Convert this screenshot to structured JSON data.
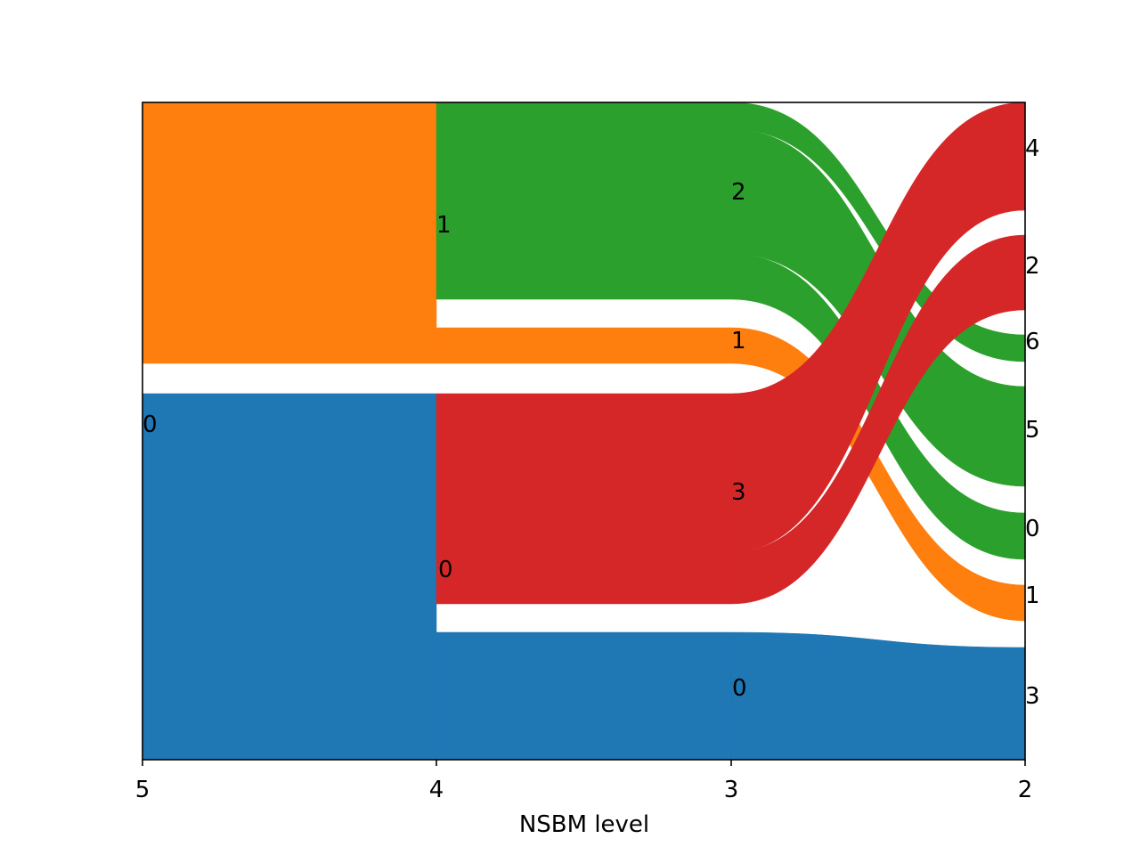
{
  "chart_data": {
    "type": "sankey",
    "xlabel": "NSBM level",
    "x_ticks": [
      "5",
      "4",
      "3",
      "2"
    ],
    "levels": [
      "5",
      "4",
      "3",
      "2"
    ],
    "colors": {
      "blue": "#1f77b4",
      "orange": "#ff7f0e",
      "green": "#2ca02c",
      "red": "#d62728"
    },
    "nodes": [
      {
        "level": "5",
        "label": "0",
        "color": "#1f77b4"
      },
      {
        "level": "4",
        "label": "1",
        "color": "#ff7f0e"
      },
      {
        "level": "4",
        "label": "0",
        "color": "#1f77b4"
      },
      {
        "level": "3",
        "label": "2",
        "color": "#2ca02c"
      },
      {
        "level": "3",
        "label": "1",
        "color": "#ff7f0e"
      },
      {
        "level": "3",
        "label": "3",
        "color": "#d62728"
      },
      {
        "level": "3",
        "label": "0",
        "color": "#1f77b4"
      },
      {
        "level": "2",
        "label": "4",
        "color": "#d62728"
      },
      {
        "level": "2",
        "label": "2",
        "color": "#d62728"
      },
      {
        "level": "2",
        "label": "6",
        "color": "#2ca02c"
      },
      {
        "level": "2",
        "label": "5",
        "color": "#2ca02c"
      },
      {
        "level": "2",
        "label": "0",
        "color": "#2ca02c"
      },
      {
        "level": "2",
        "label": "1",
        "color": "#ff7f0e"
      },
      {
        "level": "2",
        "label": "3",
        "color": "#1f77b4"
      }
    ]
  }
}
